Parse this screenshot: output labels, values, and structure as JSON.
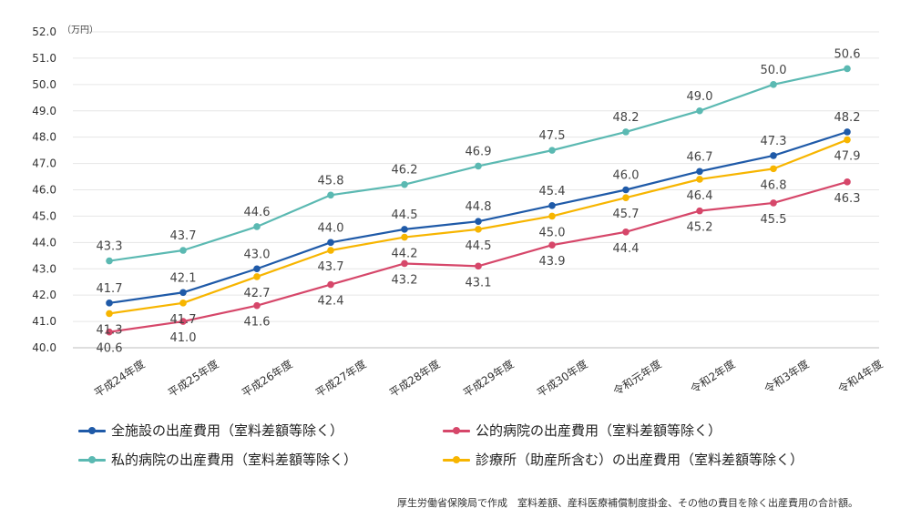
{
  "chart_data": {
    "type": "line",
    "unit_label": "（万円）",
    "categories": [
      "平成24年度",
      "平成25年度",
      "平成26年度",
      "平成27年度",
      "平成28年度",
      "平成29年度",
      "平成30年度",
      "令和元年度",
      "令和2年度",
      "令和3年度",
      "令和4年度"
    ],
    "ylim": [
      40.0,
      52.0
    ],
    "yticks": [
      "40.0",
      "41.0",
      "42.0",
      "43.0",
      "44.0",
      "45.0",
      "46.0",
      "47.0",
      "48.0",
      "49.0",
      "50.0",
      "51.0",
      "52.0"
    ],
    "grid": true,
    "legend_position": "bottom",
    "series": [
      {
        "name": "全施設の出産費用（室料差額等除く）",
        "color": "#1f5aa8",
        "label_pos": "above",
        "values": [
          41.7,
          42.1,
          43.0,
          44.0,
          44.5,
          44.8,
          45.4,
          46.0,
          46.7,
          47.3,
          48.2
        ],
        "labels": [
          "41.7",
          "42.1",
          "43.0",
          "44.0",
          "44.5",
          "44.8",
          "45.4",
          "46.0",
          "46.7",
          "47.3",
          "48.2"
        ]
      },
      {
        "name": "公的病院の出産費用（室料差額等除く）",
        "color": "#d6476a",
        "label_pos": "below",
        "values": [
          40.6,
          41.0,
          41.6,
          42.4,
          43.2,
          43.1,
          43.9,
          44.4,
          45.2,
          45.5,
          46.3
        ],
        "labels": [
          "40.6",
          "41.0",
          "41.6",
          "42.4",
          "43.2",
          "43.1",
          "43.9",
          "44.4",
          "45.2",
          "45.5",
          "46.3"
        ]
      },
      {
        "name": "私的病院の出産費用（室料差額等除く）",
        "color": "#5bb9b2",
        "label_pos": "above",
        "values": [
          43.3,
          43.7,
          44.6,
          45.8,
          46.2,
          46.9,
          47.5,
          48.2,
          49.0,
          50.0,
          50.6
        ],
        "labels": [
          "43.3",
          "43.7",
          "44.6",
          "45.8",
          "46.2",
          "46.9",
          "47.5",
          "48.2",
          "49.0",
          "50.0",
          "50.6"
        ]
      },
      {
        "name": "診療所（助産所含む）の出産費用（室料差額等除く）",
        "color": "#f7b500",
        "label_pos": "below",
        "values": [
          41.3,
          41.7,
          42.7,
          43.7,
          44.2,
          44.5,
          45.0,
          45.7,
          46.4,
          46.8,
          47.9
        ],
        "labels": [
          "41.3",
          "41.7",
          "42.7",
          "43.7",
          "44.2",
          "44.5",
          "45.0",
          "45.7",
          "46.4",
          "46.8",
          "47.9"
        ]
      }
    ]
  },
  "legend": {
    "items": [
      {
        "label": "全施設の出産費用（室料差額等除く）",
        "color": "#1f5aa8"
      },
      {
        "label": "公的病院の出産費用（室料差額等除く）",
        "color": "#d6476a"
      },
      {
        "label": "私的病院の出産費用（室料差額等除く）",
        "color": "#5bb9b2"
      },
      {
        "label": "診療所（助産所含む）の出産費用（室料差額等除く）",
        "color": "#f7b500"
      }
    ]
  },
  "footnote": "厚生労働省保険局で作成　室料差額、産科医療補償制度掛金、その他の費目を除く出産費用の合計額。"
}
